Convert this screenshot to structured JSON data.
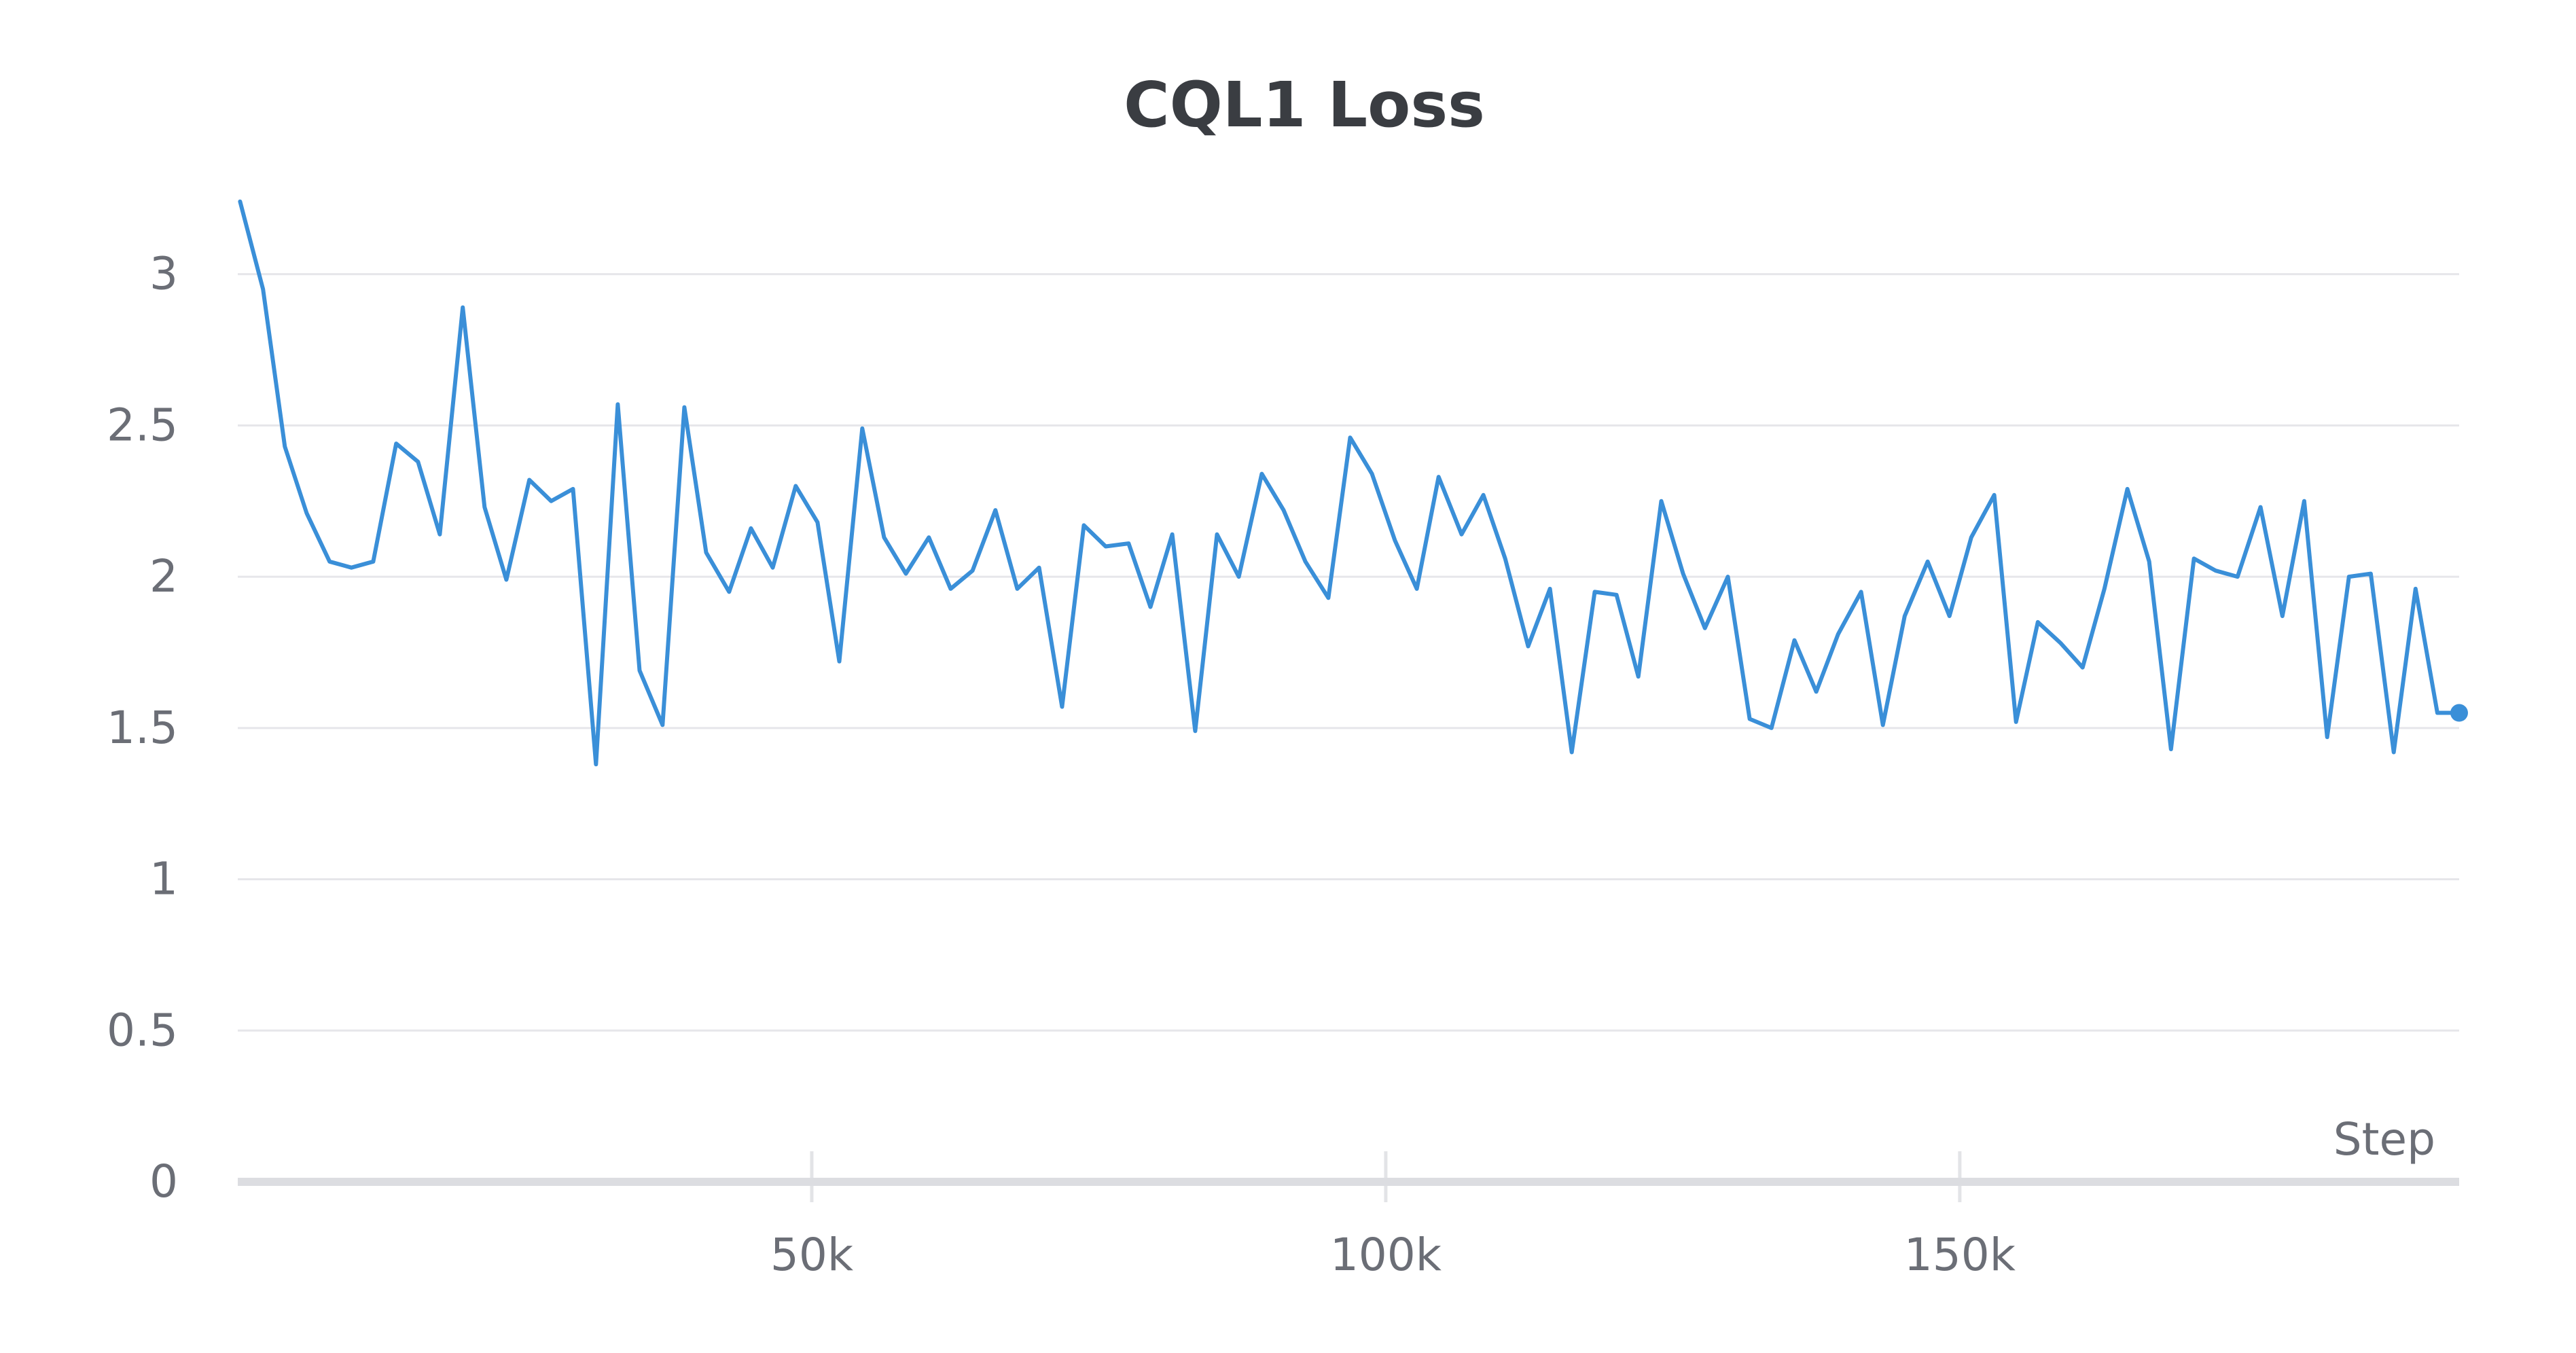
{
  "chart_data": {
    "type": "line",
    "title": "CQL1 Loss",
    "xlabel": "Step",
    "ylabel": "",
    "xlim": [
      0,
      193500
    ],
    "ylim": [
      0,
      3.3
    ],
    "x_ticks": [
      {
        "value": 50000,
        "label": "50k"
      },
      {
        "value": 100000,
        "label": "100k"
      },
      {
        "value": 150000,
        "label": "150k"
      }
    ],
    "y_ticks": [
      {
        "value": 0,
        "label": "0"
      },
      {
        "value": 0.5,
        "label": "0.5"
      },
      {
        "value": 1,
        "label": "1"
      },
      {
        "value": 1.5,
        "label": "1.5"
      },
      {
        "value": 2,
        "label": "2"
      },
      {
        "value": 2.5,
        "label": "2.5"
      },
      {
        "value": 3,
        "label": "3"
      }
    ],
    "grid": true,
    "color": "#3a8fd8",
    "series": [
      {
        "x": [
          200,
          2200,
          4100,
          6000,
          8000,
          9900,
          11800,
          13800,
          15700,
          17600,
          19600,
          21500,
          23400,
          25400,
          27300,
          29200,
          31200,
          33100,
          35000,
          37000,
          38900,
          40800,
          42800,
          44700,
          46600,
          48600,
          50500,
          52400,
          54400,
          56300,
          58200,
          60200,
          62100,
          64000,
          66000,
          67900,
          69800,
          71800,
          73700,
          75600,
          77600,
          79500,
          81400,
          83400,
          85300,
          87200,
          89200,
          91100,
          93000,
          95000,
          96900,
          98800,
          100800,
          102700,
          104600,
          106600,
          108500,
          110400,
          112400,
          114300,
          116200,
          118200,
          120100,
          122000,
          124000,
          125900,
          127800,
          129800,
          131700,
          133600,
          135600,
          137500,
          139400,
          141400,
          143300,
          145200,
          147200,
          149100,
          151000,
          153000,
          154900,
          156800,
          158800,
          160700,
          162600,
          164600,
          166500,
          168400,
          170400,
          172300,
          174200,
          176200,
          178100,
          180000,
          182000,
          183900,
          185800,
          187800,
          189700,
          191600,
          193500
        ],
        "values": [
          3.24,
          2.95,
          2.43,
          2.21,
          2.05,
          2.03,
          2.05,
          2.44,
          2.38,
          2.14,
          2.89,
          2.23,
          1.99,
          2.32,
          2.25,
          2.29,
          1.38,
          2.57,
          1.69,
          1.51,
          2.56,
          2.08,
          1.95,
          2.16,
          2.03,
          2.3,
          2.18,
          1.72,
          2.49,
          2.13,
          2.01,
          2.13,
          1.96,
          2.02,
          2.22,
          1.96,
          2.03,
          1.57,
          2.17,
          2.1,
          2.11,
          1.9,
          2.14,
          1.49,
          2.14,
          2.0,
          2.34,
          2.22,
          2.05,
          1.93,
          2.46,
          2.34,
          2.12,
          1.96,
          2.33,
          2.14,
          2.27,
          2.06,
          1.77,
          1.96,
          1.42,
          1.95,
          1.94,
          1.67,
          2.25,
          2.01,
          1.83,
          2.0,
          1.53,
          1.5,
          1.79,
          1.62,
          1.81,
          1.95,
          1.51,
          1.87,
          2.05,
          1.87,
          2.13,
          2.27,
          1.52,
          1.85,
          1.78,
          1.7,
          1.96,
          2.29,
          2.05,
          1.43,
          2.06,
          2.02,
          2.0,
          2.23,
          1.87,
          2.25,
          1.47,
          2.0,
          2.01,
          1.42,
          1.96,
          1.55,
          1.55
        ]
      }
    ]
  }
}
